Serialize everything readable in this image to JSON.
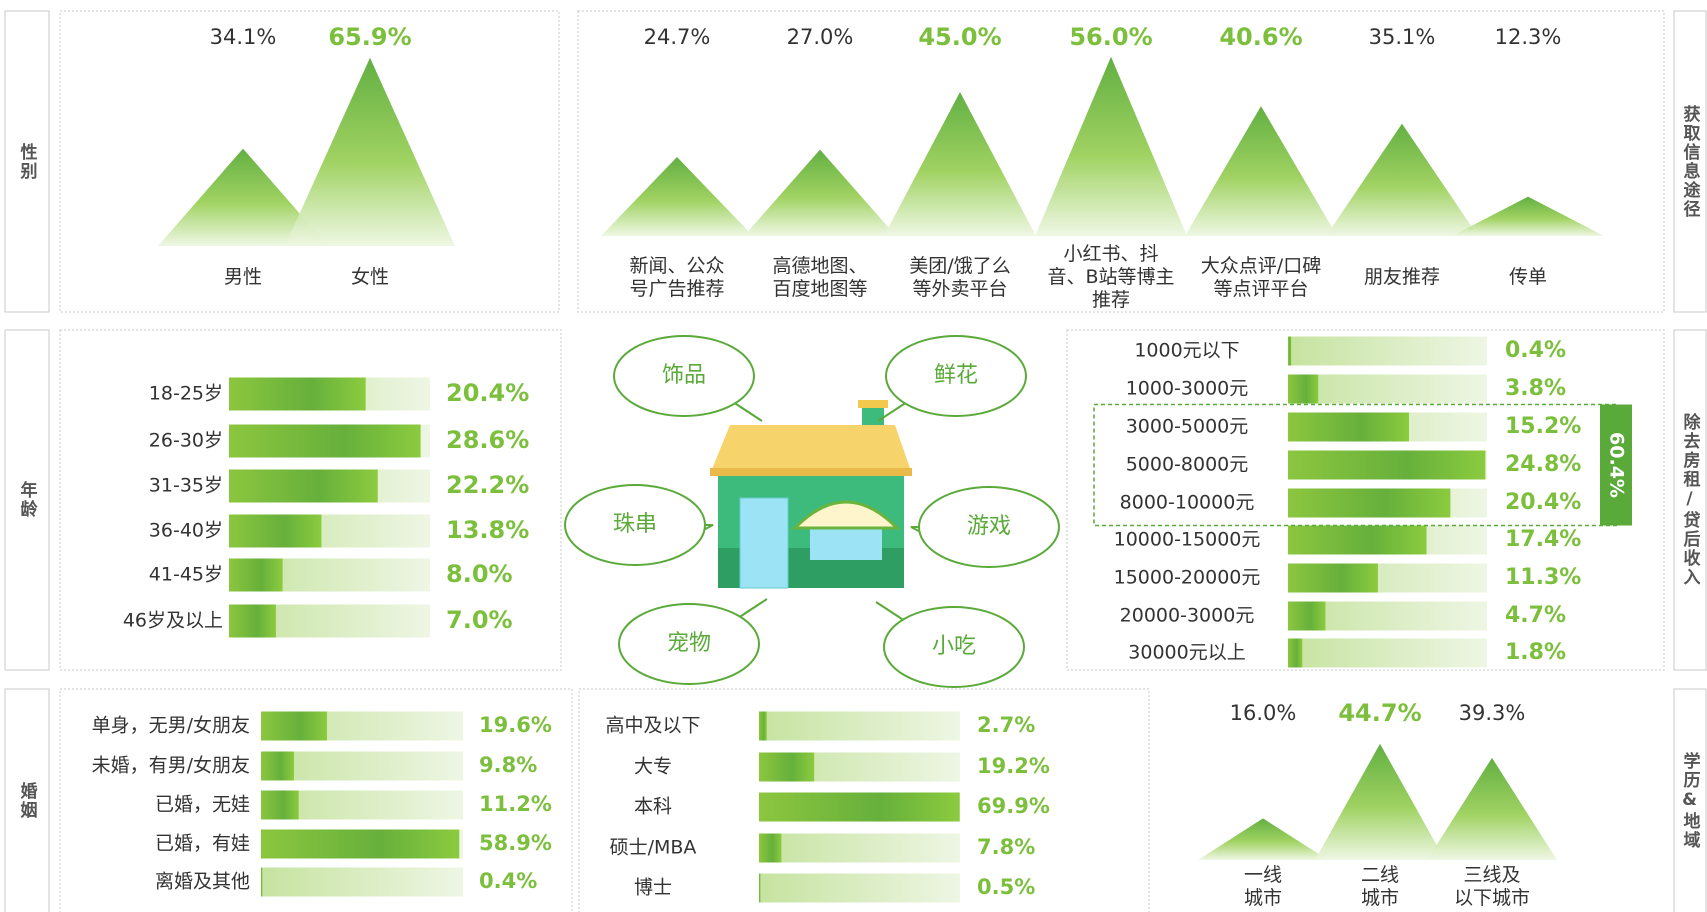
{
  "side_labels": {
    "left": [
      "性别",
      "年龄",
      "婚姻"
    ],
    "right": [
      "获取信息途径",
      "除去房租/贷后收入",
      "学历&地域"
    ]
  },
  "illustration": {
    "bubbles": [
      "饰品",
      "鲜花",
      "珠串",
      "游戏",
      "宠物",
      "小吃"
    ]
  },
  "chart_data": [
    {
      "type": "mountain",
      "categories": [
        "男性",
        "女性"
      ],
      "values": [
        34.1,
        65.9
      ],
      "value_labels": [
        "34.1%",
        "65.9%"
      ],
      "highlight": [
        false,
        true
      ],
      "ylim": [
        0,
        70
      ]
    },
    {
      "type": "mountain",
      "categories": [
        "新闻、公众\n号广告推荐",
        "高德地图、\n百度地图等",
        "美团/饿了么\n等外卖平台",
        "小红书、抖\n音、B站等博主\n推荐",
        "大众点评/口碑\n等点评平台",
        "朋友推荐",
        "传单"
      ],
      "values": [
        24.7,
        27.0,
        45.0,
        56.0,
        40.6,
        35.1,
        12.3
      ],
      "value_labels": [
        "24.7%",
        "27.0%",
        "45.0%",
        "56.0%",
        "40.6%",
        "35.1%",
        "12.3%"
      ],
      "highlight": [
        false,
        false,
        true,
        true,
        true,
        false,
        false
      ],
      "ylim": [
        0,
        60
      ]
    },
    {
      "type": "hbar",
      "categories": [
        "18-25岁",
        "26-30岁",
        "31-35岁",
        "36-40岁",
        "41-45岁",
        "46岁及以上"
      ],
      "values": [
        20.4,
        28.6,
        22.2,
        13.8,
        8.0,
        7.0
      ],
      "value_labels": [
        "20.4%",
        "28.6%",
        "22.2%",
        "13.8%",
        "8.0%",
        "7.0%"
      ],
      "xlim": [
        0,
        30
      ]
    },
    {
      "type": "hbar",
      "categories": [
        "1000元以下",
        "1000-3000元",
        "3000-5000元",
        "5000-8000元",
        "8000-10000元",
        "10000-15000元",
        "15000-20000元",
        "20000-3000元",
        "30000元以上"
      ],
      "values": [
        0.4,
        3.8,
        15.2,
        24.8,
        20.4,
        17.4,
        11.3,
        4.7,
        1.8
      ],
      "value_labels": [
        "0.4%",
        "3.8%",
        "15.2%",
        "24.8%",
        "20.4%",
        "17.4%",
        "11.3%",
        "4.7%",
        "1.8%"
      ],
      "xlim": [
        0,
        25
      ],
      "annotation": "60.4%",
      "annotation_span": [
        2,
        4
      ]
    },
    {
      "type": "hbar",
      "categories": [
        "单身，无男/女朋友",
        "未婚，有男/女朋友",
        "已婚，无娃",
        "已婚，有娃",
        "离婚及其他"
      ],
      "values": [
        19.6,
        9.8,
        11.2,
        58.9,
        0.4
      ],
      "value_labels": [
        "19.6%",
        "9.8%",
        "11.2%",
        "58.9%",
        "0.4%"
      ],
      "xlim": [
        0,
        60
      ]
    },
    {
      "type": "hbar",
      "categories": [
        "高中及以下",
        "大专",
        "本科",
        "硕士/MBA",
        "博士"
      ],
      "values": [
        2.7,
        19.2,
        69.9,
        7.8,
        0.5
      ],
      "value_labels": [
        "2.7%",
        "19.2%",
        "69.9%",
        "7.8%",
        "0.5%"
      ],
      "xlim": [
        0,
        70
      ]
    },
    {
      "type": "mountain",
      "categories": [
        "一线\n城市",
        "二线\n城市",
        "三线及\n以下城市"
      ],
      "values": [
        16.0,
        44.7,
        39.3
      ],
      "value_labels": [
        "16.0%",
        "44.7%",
        "39.3%"
      ],
      "highlight": [
        false,
        true,
        false
      ],
      "ylim": [
        0,
        50
      ]
    }
  ]
}
